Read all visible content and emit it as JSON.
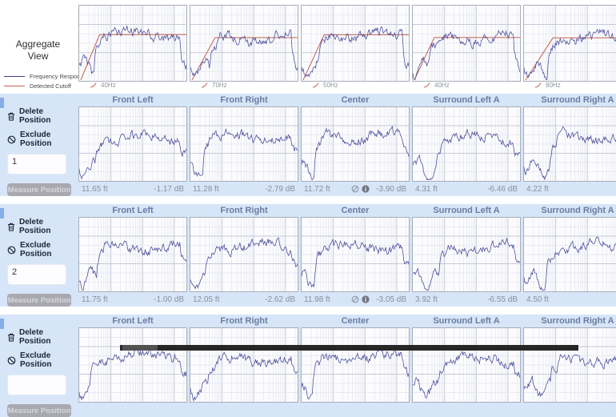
{
  "aggregate": {
    "title_line1": "Aggregate",
    "title_line2": "View",
    "legend": [
      {
        "label": "Frequency Response",
        "color": "#3f4187"
      },
      {
        "label": "Detected Cutoff",
        "color": "#c4604e"
      }
    ],
    "cutoffs": [
      "40Hz",
      "70Hz",
      "50Hz",
      "40Hz",
      "80Hz"
    ]
  },
  "columns": [
    "Front Left",
    "Front Right",
    "Center",
    "Surround Left A",
    "Surround Right A"
  ],
  "controls": {
    "delete_label": "Delete Position",
    "exclude_label": "Exclude Position",
    "measure_label": "Measure Position"
  },
  "positions": [
    {
      "number": "1",
      "measurements": [
        {
          "distance": "11.65 ft",
          "level": "-1.17 dB",
          "flagged": false
        },
        {
          "distance": "11.28 ft",
          "level": "-2.79 dB",
          "flagged": false
        },
        {
          "distance": "11.72 ft",
          "level": "-3.90 dB",
          "flagged": true
        },
        {
          "distance": "4.31 ft",
          "level": "-6.46 dB",
          "flagged": false
        },
        {
          "distance": "4.22 ft",
          "level": "",
          "flagged": false
        }
      ]
    },
    {
      "number": "2",
      "measurements": [
        {
          "distance": "11.75 ft",
          "level": "-1.00 dB",
          "flagged": false
        },
        {
          "distance": "12.05 ft",
          "level": "-2.62 dB",
          "flagged": false
        },
        {
          "distance": "11.98 ft",
          "level": "-3.05 dB",
          "flagged": true
        },
        {
          "distance": "3.92 ft",
          "level": "-6.55 dB",
          "flagged": false
        },
        {
          "distance": "4.50 ft",
          "level": "",
          "flagged": false
        }
      ]
    },
    {
      "number": "",
      "measurements": [
        {
          "distance": "",
          "level": "",
          "flagged": false
        },
        {
          "distance": "",
          "level": "",
          "flagged": false
        },
        {
          "distance": "",
          "level": "",
          "flagged": false
        },
        {
          "distance": "",
          "level": "",
          "flagged": false
        },
        {
          "distance": "",
          "level": "",
          "flagged": false
        }
      ]
    }
  ],
  "colors": {
    "band_background": "#d7e5f8",
    "trace": "#4d4f9d",
    "cutoff": "#c4604e",
    "grid": "#e3e5ee",
    "grid_major": "#c6cad6",
    "header_text": "#6b7ca2"
  }
}
